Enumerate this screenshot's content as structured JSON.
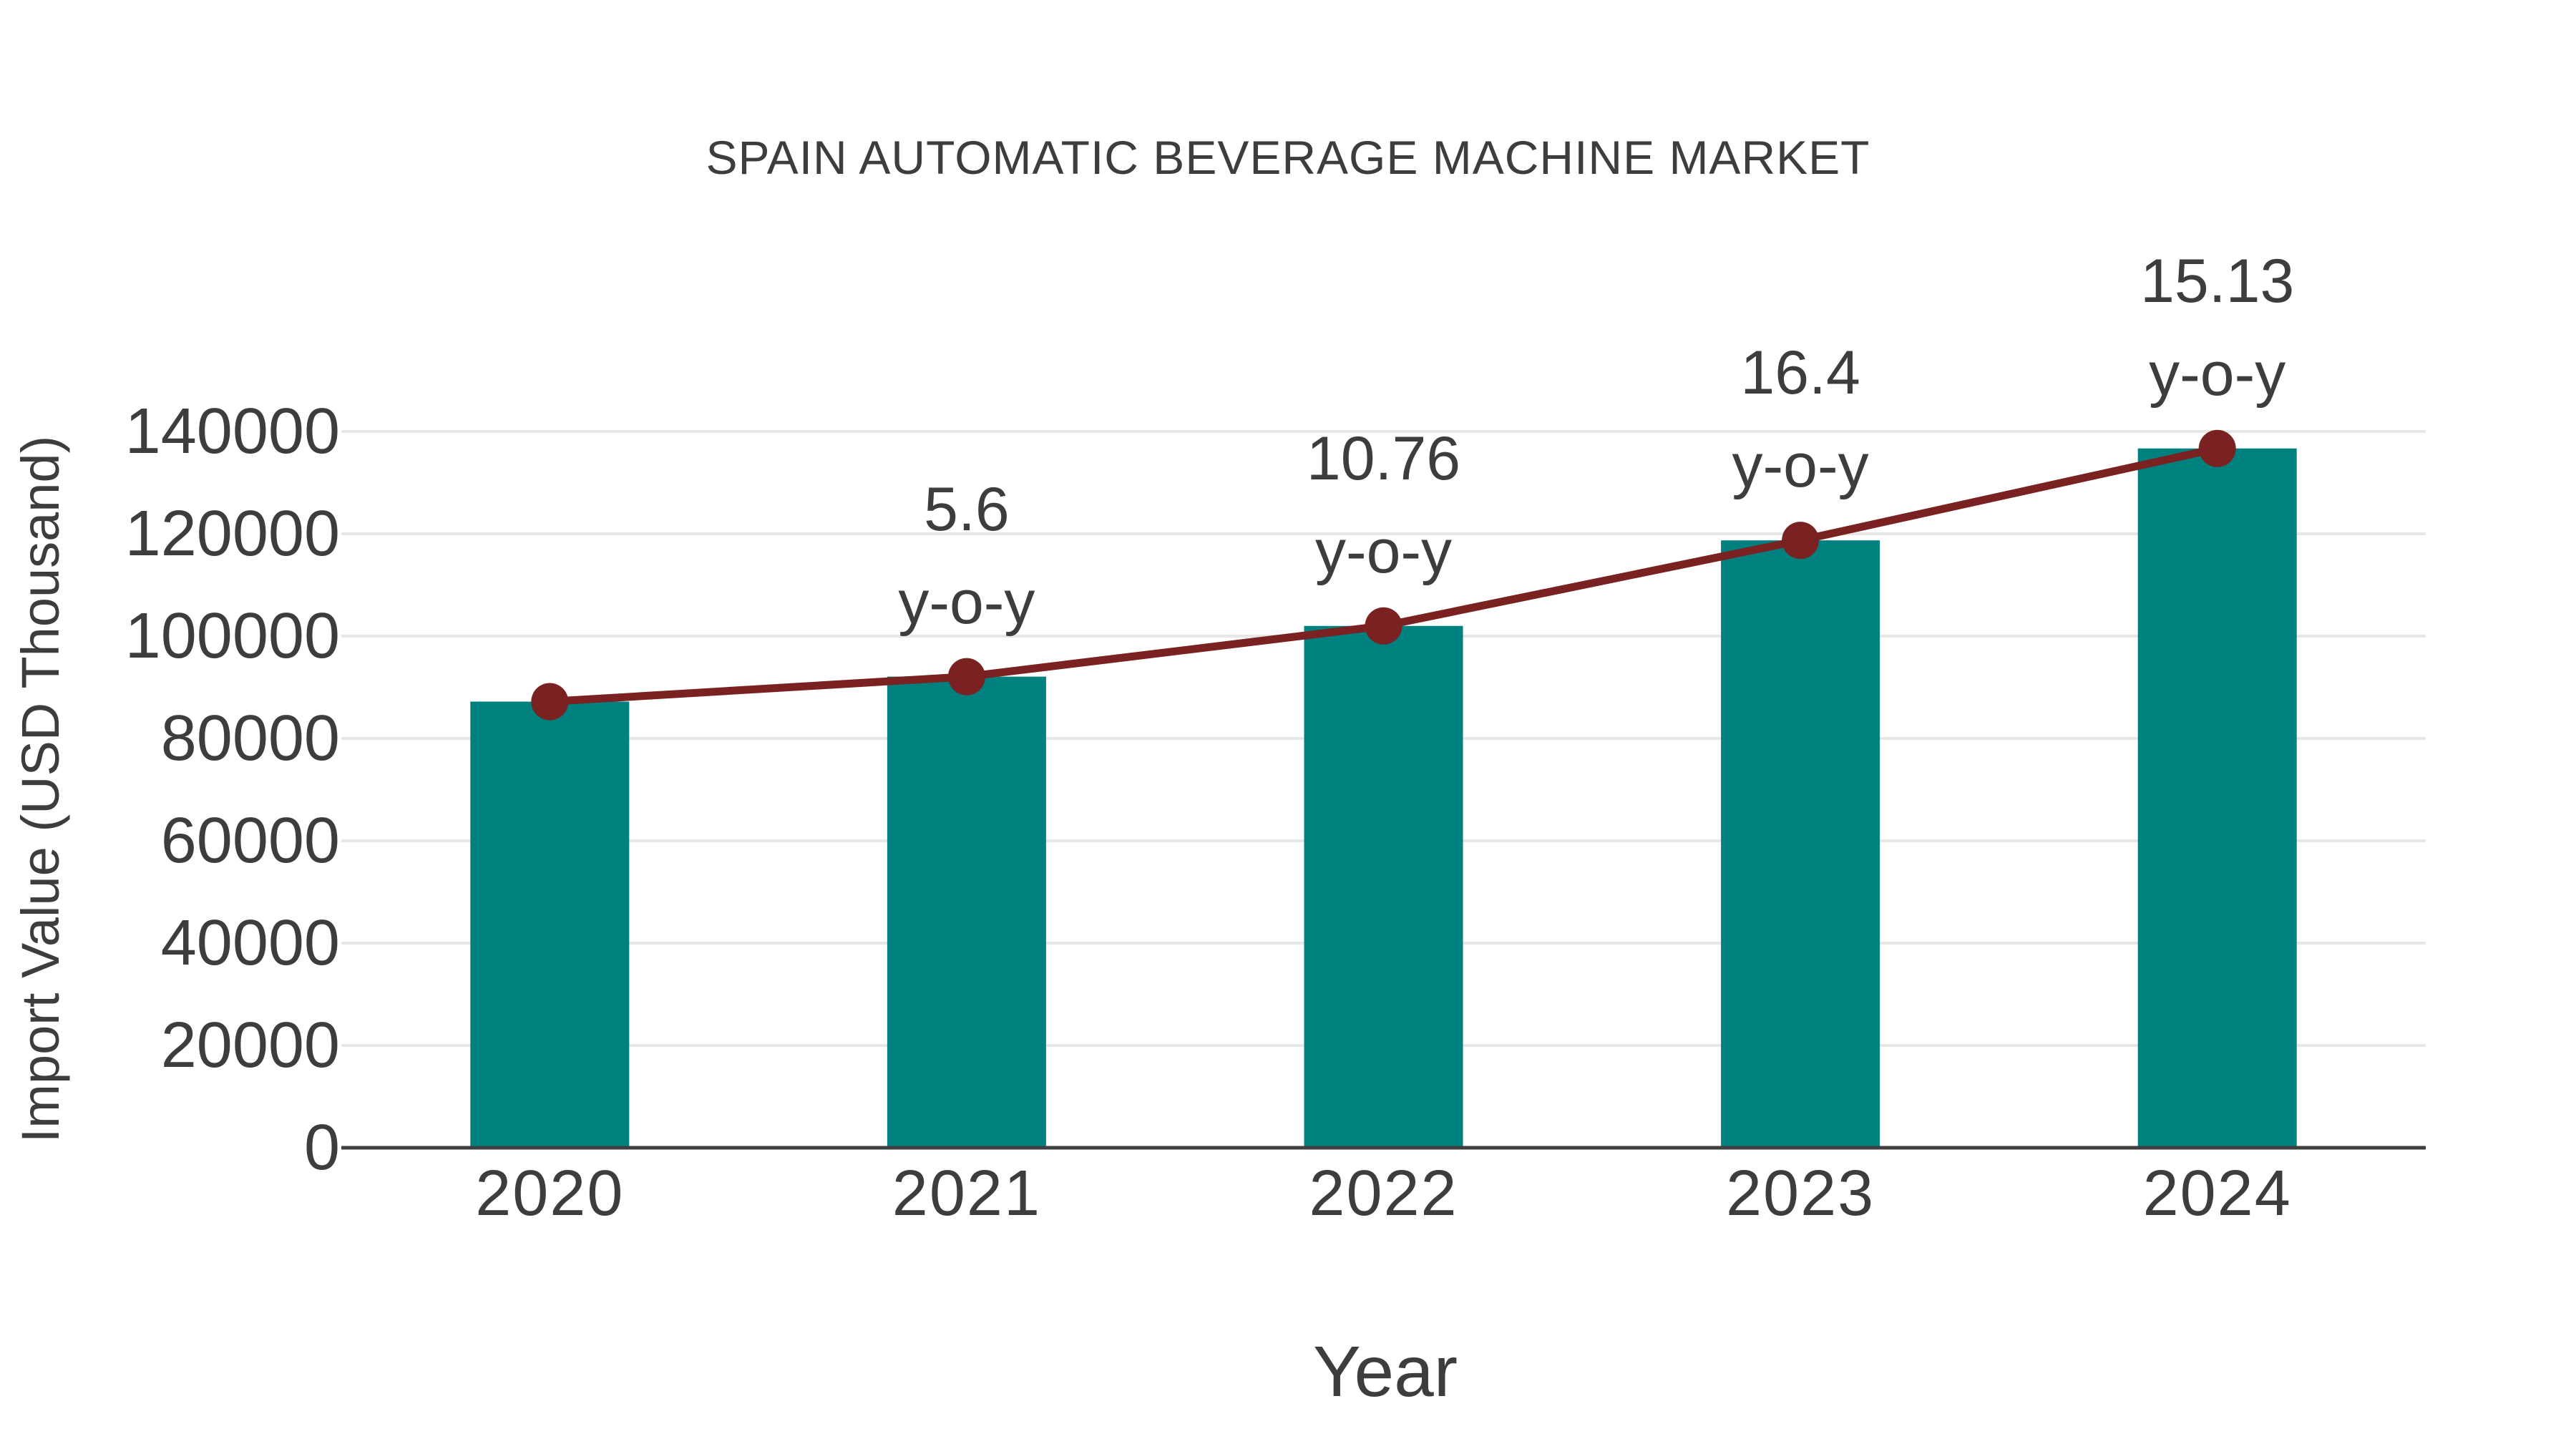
{
  "chart_data": {
    "type": "bar",
    "title": "SPAIN AUTOMATIC BEVERAGE MACHINE MARKET",
    "xlabel": "Year",
    "ylabel": "Import Value (USD Thousand)",
    "categories": [
      "2020",
      "2021",
      "2022",
      "2023",
      "2024"
    ],
    "values": [
      87200,
      92083,
      101993,
      118720,
      136683
    ],
    "line_overlay": {
      "name": "import-value-trend-line",
      "values": [
        87200,
        92083,
        101993,
        118720,
        136683
      ]
    },
    "yoy_annotations": [
      {
        "category": "2021",
        "value": "5.6",
        "suffix": "y-o-y"
      },
      {
        "category": "2022",
        "value": "10.76",
        "suffix": "y-o-y"
      },
      {
        "category": "2023",
        "value": "16.4",
        "suffix": "y-o-y"
      },
      {
        "category": "2024",
        "value": "15.13",
        "suffix": "y-o-y"
      }
    ],
    "yticks": [
      0,
      20000,
      40000,
      60000,
      80000,
      100000,
      120000,
      140000
    ],
    "ylim": [
      0,
      140000
    ],
    "grid": "horizontal",
    "legend": "none"
  },
  "colors": {
    "bar": "#00807E",
    "line": "#7A2121",
    "marker": "#7A2121",
    "text": "#3D3D3D",
    "grid": "#E7E7E7",
    "axis": "#3F3F3F",
    "background": "#FFFFFF"
  }
}
